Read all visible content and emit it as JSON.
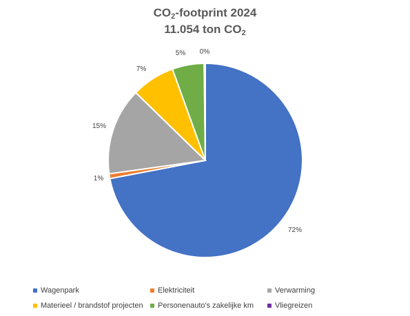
{
  "chart_data": {
    "type": "pie",
    "title": {
      "line1_prefix": "CO",
      "line1_sub": "2",
      "line1_suffix": "-footprint 2024",
      "line2_prefix": "11.054 ton CO",
      "line2_sub": "2"
    },
    "start_angle_deg": 0,
    "direction": "clockwise",
    "series": [
      {
        "name": "Wagenpark",
        "value": 72,
        "label": "72%",
        "color": "#4472C4"
      },
      {
        "name": "Elektriciteit",
        "value": 0.8,
        "label": "1%",
        "color": "#ED7D31"
      },
      {
        "name": "Verwarming",
        "value": 14.5,
        "label": "15%",
        "color": "#A5A5A5"
      },
      {
        "name": "Materieel / brandstof projecten",
        "value": 7.2,
        "label": "7%",
        "color": "#FFC000"
      },
      {
        "name": "Personenauto's zakelijke km",
        "value": 5.3,
        "label": "5%",
        "color": "#70AD47"
      },
      {
        "name": "Vliegreizen",
        "value": 0.2,
        "label": "0%",
        "color": "#7030A0"
      }
    ],
    "legend_position": "bottom"
  }
}
